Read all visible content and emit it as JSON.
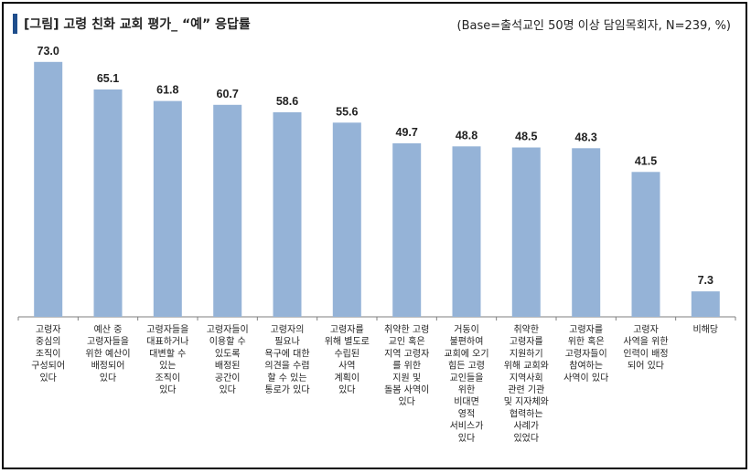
{
  "header": {
    "title": "[그림] 고령 친화 교회 평가_ “예” 응답률",
    "base_note": "(Base=출석교인 50명 이상 담임목회자, N=239, %)"
  },
  "colors": {
    "bar": "#95b3d7",
    "accent": "#1f4e8c",
    "axis": "#7f7f7f"
  },
  "chart_data": {
    "type": "bar",
    "ylim": [
      0,
      80
    ],
    "grid": false,
    "categories": [
      [
        "고령자",
        "중심의",
        "조직이",
        "구성되어",
        "있다"
      ],
      [
        "예산 중",
        "고령자들을",
        "위한 예산이",
        "배정되어",
        "있다"
      ],
      [
        "고령자들을",
        "대표하거나",
        "대변할 수",
        "있는",
        "조직이",
        "있다"
      ],
      [
        "고령자들이",
        "이용할 수",
        "있도록",
        "배정된",
        "공간이",
        "있다"
      ],
      [
        "고령자의",
        "필요나",
        "욕구에 대한",
        "의견을 수렴",
        "할 수 있는",
        "통로가 있다"
      ],
      [
        "고령자를",
        "위해 별도로",
        "수립된",
        "사역",
        "계획이",
        "있다"
      ],
      [
        "취약한 고령",
        "교인 혹은",
        "지역 고령자",
        "를 위한",
        "지원 및",
        "돌봄 사역이",
        "있다"
      ],
      [
        "거동이",
        "불편하여",
        "교회에 오기",
        "힘든 고령",
        "교인들을",
        "위한",
        "비대면",
        "영적",
        "서비스가",
        "있다"
      ],
      [
        "취약한",
        "고령자를",
        "지원하기",
        "위해 교회와",
        "지역사회",
        "관련 기관",
        "및 지자체와",
        "협력하는",
        "사례가",
        "있었다"
      ],
      [
        "고령자를",
        "위한 혹은",
        "고령자들이",
        "참여하는",
        "사역이 있다"
      ],
      [
        "고령자",
        "사역을 위한",
        "인력이 배정",
        "되어 있다"
      ],
      [
        "비해당"
      ]
    ],
    "values": [
      73.0,
      65.1,
      61.8,
      60.7,
      58.6,
      55.6,
      49.7,
      48.8,
      48.5,
      48.3,
      41.5,
      7.3
    ],
    "value_labels": [
      "73.0",
      "65.1",
      "61.8",
      "60.7",
      "58.6",
      "55.6",
      "49.7",
      "48.8",
      "48.5",
      "48.3",
      "41.5",
      "7.3"
    ]
  }
}
